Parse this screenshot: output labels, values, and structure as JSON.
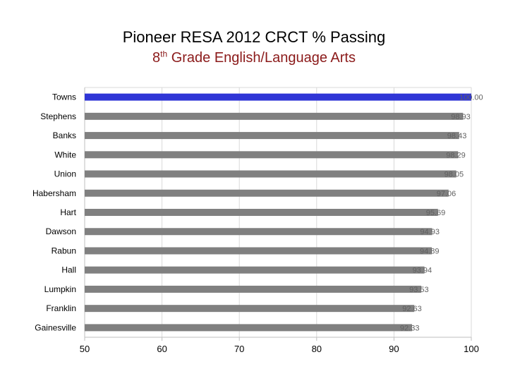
{
  "title": {
    "line1": "Pioneer RESA 2012 CRCT % Passing",
    "line2_grade_num": "8",
    "line2_grade_suffix": "th",
    "line2_rest": " Grade English/Language Arts"
  },
  "chart_data": {
    "type": "bar",
    "orientation": "horizontal",
    "categories": [
      "Towns",
      "Stephens",
      "Banks",
      "White",
      "Union",
      "Habersham",
      "Hart",
      "Dawson",
      "Rabun",
      "Hall",
      "Lumpkin",
      "Franklin",
      "Gainesville"
    ],
    "values": [
      100.0,
      98.93,
      98.43,
      98.29,
      98.05,
      97.06,
      95.69,
      94.93,
      94.89,
      93.94,
      93.53,
      92.63,
      92.33
    ],
    "value_labels": [
      "100.00",
      "98.93",
      "98.43",
      "98.29",
      "98.05",
      "97.06",
      "95.69",
      "94.93",
      "94.89",
      "93.94",
      "93.53",
      "92.63",
      "92.33"
    ],
    "xlim": [
      50,
      100
    ],
    "xticks": [
      50,
      60,
      70,
      80,
      90,
      100
    ],
    "grid": true,
    "colors": {
      "highlight": "#2f35d6",
      "bar": "#808080",
      "grid": "#d9d9d9",
      "axis": "#bfbfbf"
    },
    "highlight_index": 0
  }
}
